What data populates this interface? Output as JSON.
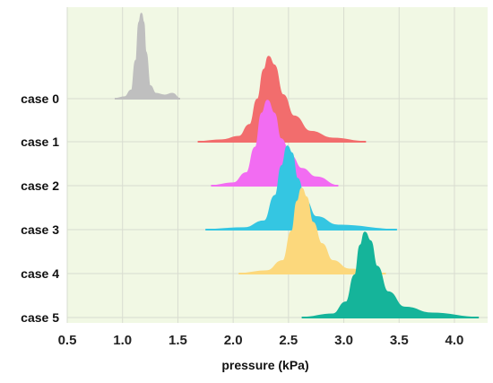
{
  "chart_data": {
    "type": "area",
    "subtype": "ridgeline",
    "xlabel": "pressure  (kPa)",
    "ylabel": "",
    "xlim": [
      0.5,
      4.3
    ],
    "xticks": [
      "0.5",
      "1.0",
      "1.5",
      "2.0",
      "2.5",
      "3.0",
      "3.5",
      "4.0"
    ],
    "xtick_values": [
      0.5,
      1.0,
      1.5,
      2.0,
      2.5,
      3.0,
      3.5,
      4.0
    ],
    "grid": true,
    "background_color": "#f1f8e4",
    "series": [
      {
        "name": "case  0",
        "color": "#bfbfbf",
        "x_range": [
          0.93,
          1.52
        ],
        "points": [
          [
            0.93,
            0
          ],
          [
            1.02,
            0.02
          ],
          [
            1.08,
            0.1
          ],
          [
            1.12,
            0.45
          ],
          [
            1.15,
            0.9
          ],
          [
            1.17,
            1.0
          ],
          [
            1.19,
            0.9
          ],
          [
            1.21,
            0.55
          ],
          [
            1.25,
            0.15
          ],
          [
            1.3,
            0.06
          ],
          [
            1.38,
            0.04
          ],
          [
            1.45,
            0.06
          ],
          [
            1.52,
            0
          ]
        ]
      },
      {
        "name": "case  1",
        "color": "#f26d6d",
        "x_range": [
          1.68,
          3.2
        ],
        "points": [
          [
            1.68,
            0
          ],
          [
            1.9,
            0.02
          ],
          [
            2.05,
            0.06
          ],
          [
            2.15,
            0.2
          ],
          [
            2.22,
            0.5
          ],
          [
            2.28,
            0.85
          ],
          [
            2.32,
            1.0
          ],
          [
            2.37,
            0.9
          ],
          [
            2.45,
            0.55
          ],
          [
            2.55,
            0.3
          ],
          [
            2.7,
            0.12
          ],
          [
            2.9,
            0.04
          ],
          [
            3.2,
            0
          ]
        ]
      },
      {
        "name": "case  2",
        "color": "#f26cf2",
        "x_range": [
          1.8,
          2.95
        ],
        "points": [
          [
            1.8,
            0
          ],
          [
            2.0,
            0.03
          ],
          [
            2.12,
            0.15
          ],
          [
            2.2,
            0.45
          ],
          [
            2.26,
            0.85
          ],
          [
            2.31,
            1.0
          ],
          [
            2.37,
            0.85
          ],
          [
            2.43,
            0.55
          ],
          [
            2.52,
            0.35
          ],
          [
            2.62,
            0.2
          ],
          [
            2.75,
            0.1
          ],
          [
            2.95,
            0
          ]
        ]
      },
      {
        "name": "case  3",
        "color": "#34c6e2",
        "x_range": [
          1.75,
          3.48
        ],
        "points": [
          [
            1.75,
            0
          ],
          [
            2.1,
            0.02
          ],
          [
            2.28,
            0.1
          ],
          [
            2.38,
            0.4
          ],
          [
            2.44,
            0.75
          ],
          [
            2.49,
            0.98
          ],
          [
            2.53,
            0.9
          ],
          [
            2.58,
            0.6
          ],
          [
            2.65,
            0.35
          ],
          [
            2.75,
            0.15
          ],
          [
            2.95,
            0.05
          ],
          [
            3.48,
            0
          ]
        ]
      },
      {
        "name": "case  4",
        "color": "#fcd87c",
        "x_range": [
          2.05,
          3.38
        ],
        "points": [
          [
            2.05,
            0
          ],
          [
            2.3,
            0.03
          ],
          [
            2.45,
            0.15
          ],
          [
            2.53,
            0.5
          ],
          [
            2.58,
            0.85
          ],
          [
            2.62,
            1.0
          ],
          [
            2.66,
            0.9
          ],
          [
            2.72,
            0.6
          ],
          [
            2.8,
            0.35
          ],
          [
            2.9,
            0.15
          ],
          [
            3.05,
            0.05
          ],
          [
            3.38,
            0
          ]
        ]
      },
      {
        "name": "case  5",
        "color": "#15b49a",
        "x_range": [
          2.62,
          4.22
        ],
        "points": [
          [
            2.62,
            0
          ],
          [
            2.9,
            0.04
          ],
          [
            3.02,
            0.18
          ],
          [
            3.1,
            0.5
          ],
          [
            3.15,
            0.85
          ],
          [
            3.19,
            1.0
          ],
          [
            3.24,
            0.9
          ],
          [
            3.3,
            0.6
          ],
          [
            3.4,
            0.3
          ],
          [
            3.55,
            0.12
          ],
          [
            3.8,
            0.05
          ],
          [
            4.22,
            0
          ]
        ]
      }
    ]
  }
}
